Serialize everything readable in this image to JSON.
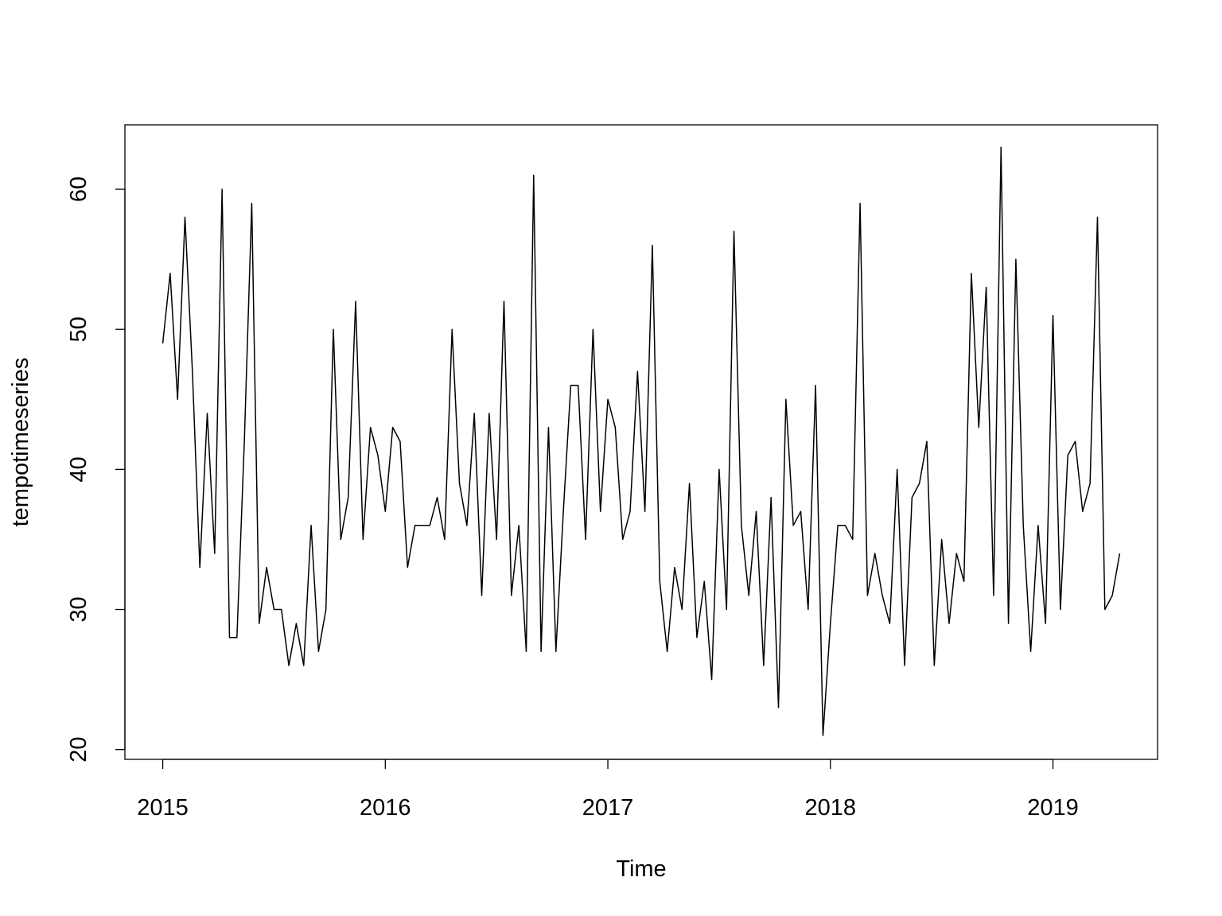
{
  "chart_data": {
    "type": "line",
    "title": "",
    "xlabel": "Time",
    "ylabel": "tempotimeseries",
    "xlim": [
      2014.83,
      2019.47
    ],
    "ylim": [
      19.3,
      64.6
    ],
    "x_ticks": [
      2015,
      2016,
      2017,
      2018,
      2019
    ],
    "x_tick_labels": [
      "2015",
      "2016",
      "2017",
      "2018",
      "2019"
    ],
    "y_ticks": [
      20,
      30,
      40,
      50,
      60
    ],
    "y_tick_labels": [
      "20",
      "30",
      "40",
      "50",
      "60"
    ],
    "grid": false,
    "legend": "none",
    "frequency": 30,
    "x_start": 2015,
    "line_color": "#000000",
    "series": [
      {
        "values": [
          49,
          54,
          45,
          58,
          47,
          33,
          44,
          34,
          60,
          28,
          28,
          42,
          59,
          29,
          33,
          30,
          30,
          26,
          29,
          26,
          36,
          27,
          30,
          50,
          35,
          38,
          52,
          35,
          43,
          41,
          37,
          43,
          42,
          33,
          36,
          36,
          36,
          38,
          35,
          50,
          39,
          36,
          44,
          31,
          44,
          35,
          52,
          31,
          36,
          27,
          61,
          27,
          43,
          27,
          37,
          46,
          46,
          35,
          50,
          37,
          45,
          43,
          35,
          37,
          47,
          37,
          56,
          32,
          27,
          33,
          30,
          39,
          28,
          32,
          25,
          40,
          30,
          57,
          36,
          31,
          37,
          26,
          38,
          23,
          45,
          36,
          37,
          30,
          46,
          21,
          29,
          36,
          36,
          35,
          59,
          31,
          34,
          31,
          29,
          40,
          26,
          38,
          39,
          42,
          26,
          35,
          29,
          34,
          32,
          54,
          43,
          53,
          31,
          63,
          29,
          55,
          36,
          27,
          36,
          29,
          51,
          30,
          41,
          42,
          37,
          39,
          58,
          30,
          31,
          34
        ]
      }
    ]
  }
}
